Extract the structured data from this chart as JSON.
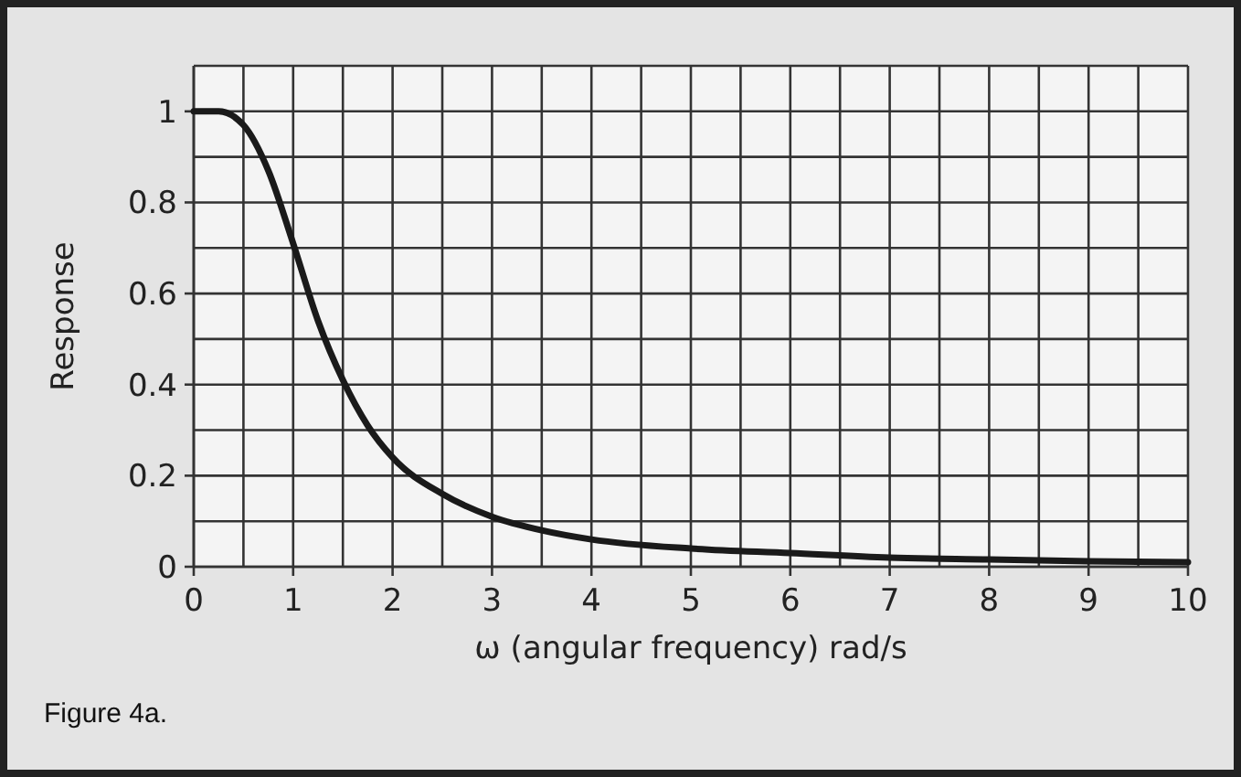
{
  "chart_data": {
    "type": "line",
    "xlabel": "ω (angular frequency) rad/s",
    "ylabel": "Response",
    "annotations": [
      "Figure 4a."
    ],
    "x": [
      0,
      0.25,
      0.5,
      0.75,
      1,
      1.25,
      1.5,
      1.75,
      2,
      2.5,
      3,
      3.5,
      4,
      5,
      6,
      7,
      8,
      9,
      10
    ],
    "series": [
      {
        "color": "#1a1a1a",
        "values": [
          1,
          1,
          0.97,
          0.87,
          0.71,
          0.54,
          0.41,
          0.31,
          0.24,
          0.16,
          0.11,
          0.08,
          0.06,
          0.04,
          0.03,
          0.02,
          0.016,
          0.012,
          0.01
        ]
      }
    ],
    "xlim": [
      0,
      10
    ],
    "xticks": [
      0,
      {
        "value": 0.5,
        "label": null
      },
      1,
      {
        "value": 1.5,
        "label": null
      },
      2,
      {
        "value": 2.5,
        "label": null
      },
      3,
      {
        "value": 3.5,
        "label": null
      },
      4,
      {
        "value": 4.5,
        "label": null
      },
      5,
      {
        "value": 5.5,
        "label": null
      },
      6,
      {
        "value": 6.5,
        "label": null
      },
      7,
      {
        "value": 7.5,
        "label": null
      },
      8,
      {
        "value": 8.5,
        "label": null
      },
      9,
      {
        "value": 9.5,
        "label": null
      },
      10
    ],
    "ylim": [
      0,
      1.1
    ],
    "yticks": [
      0,
      {
        "value": 0.1,
        "label": null
      },
      0.2,
      {
        "value": 0.3,
        "label": null
      },
      0.4,
      {
        "value": 0.5,
        "label": null
      },
      0.6,
      {
        "value": 0.7,
        "label": null
      },
      0.8,
      {
        "value": 0.9,
        "label": null
      },
      1,
      {
        "value": 1.1,
        "label": null
      }
    ],
    "grid": true,
    "marker": "none",
    "line_style": "solid"
  }
}
